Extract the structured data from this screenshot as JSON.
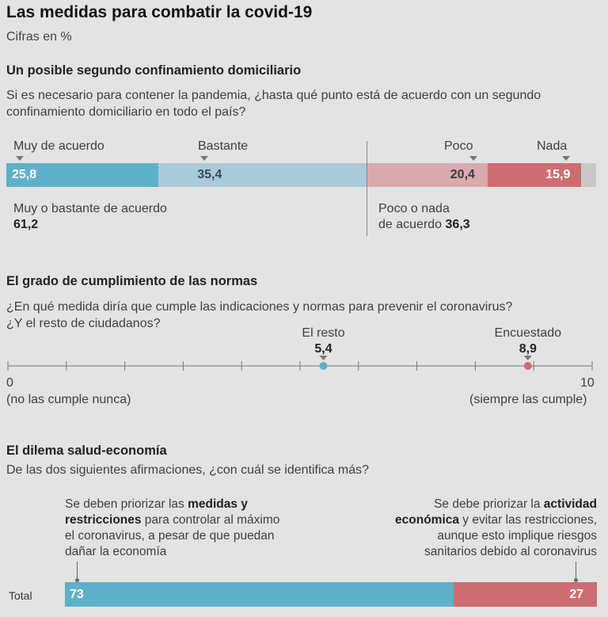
{
  "header": {
    "title": "Las medidas para combatir la covid-19",
    "subtitle": "Cifras en %"
  },
  "section1": {
    "heading": "Un posible segundo confinamiento domiciliario",
    "question_line1": "Si es necesario para contener la pandemia, ¿hasta qué punto está de acuerdo con un segundo",
    "question_line2": "confinamiento domiciliario en todo el país?",
    "summary_agree_label": "Muy o bastante de acuerdo",
    "summary_agree_value": "61,2",
    "summary_disagree_label_1": "Poco o nada",
    "summary_disagree_label_2": "de acuerdo",
    "summary_disagree_value": "36,3"
  },
  "section2": {
    "heading": "El grado de cumplimiento de las normas",
    "question_line1": "¿En qué medida diría que cumple las indicaciones y normas para prevenir el coronavirus?",
    "question_line2": "¿Y el resto de ciudadanos?",
    "min_label": "0",
    "min_caption": "(no las cumple nunca)",
    "max_label": "10",
    "max_caption": "(siempre las cumple)"
  },
  "section3": {
    "heading": "El dilema salud-economía",
    "question": "De las dos siguientes afirmaciones, ¿con cuál se identifica más?",
    "left_line1_a": "Se deben priorizar las ",
    "left_line1_b": "medidas y",
    "left_line2_a": "restricciones",
    "left_line2_b": " para controlar al máximo",
    "left_line3": "el coronavirus, a pesar de que puedan",
    "left_line4": "dañar la economía",
    "right_line1_a": "Se debe priorizar la ",
    "right_line1_b": "actividad",
    "right_line2_a": "económica",
    "right_line2_b": " y evitar las restricciones,",
    "right_line3": "aunque esto implique riesgos",
    "right_line4": "sanitarios debido al coronavirus"
  },
  "colors": {
    "blue_strong": "#5fb0c9",
    "blue_light": "#a9cad8",
    "red_light": "#d9a9ae",
    "red_strong": "#cd6d72",
    "gray_rest": "#c8c8c8"
  },
  "chart_data": [
    {
      "type": "bar",
      "title": "Un posible segundo confinamiento domiciliario",
      "orientation": "horizontal-stacked",
      "categories": [
        "Muy de acuerdo",
        "Bastante",
        "Poco",
        "Nada"
      ],
      "values": [
        25.8,
        35.4,
        20.4,
        15.9
      ],
      "value_labels": [
        "25,8",
        "35,4",
        "20,4",
        "15,9"
      ],
      "unit": "%"
    },
    {
      "type": "scatter",
      "title": "El grado de cumplimiento de las normas",
      "xlim": [
        0,
        10
      ],
      "series": [
        {
          "name": "El resto",
          "x": 5.4,
          "value_label": "5,4"
        },
        {
          "name": "Encuestado",
          "x": 8.9,
          "value_label": "8,9"
        }
      ]
    },
    {
      "type": "bar",
      "title": "El dilema salud-economía",
      "orientation": "horizontal-stacked",
      "categories": [
        "Total"
      ],
      "series": [
        {
          "values": [
            73
          ],
          "value_label": "73"
        },
        {
          "values": [
            27
          ],
          "value_label": "27"
        }
      ],
      "unit": "%"
    }
  ]
}
